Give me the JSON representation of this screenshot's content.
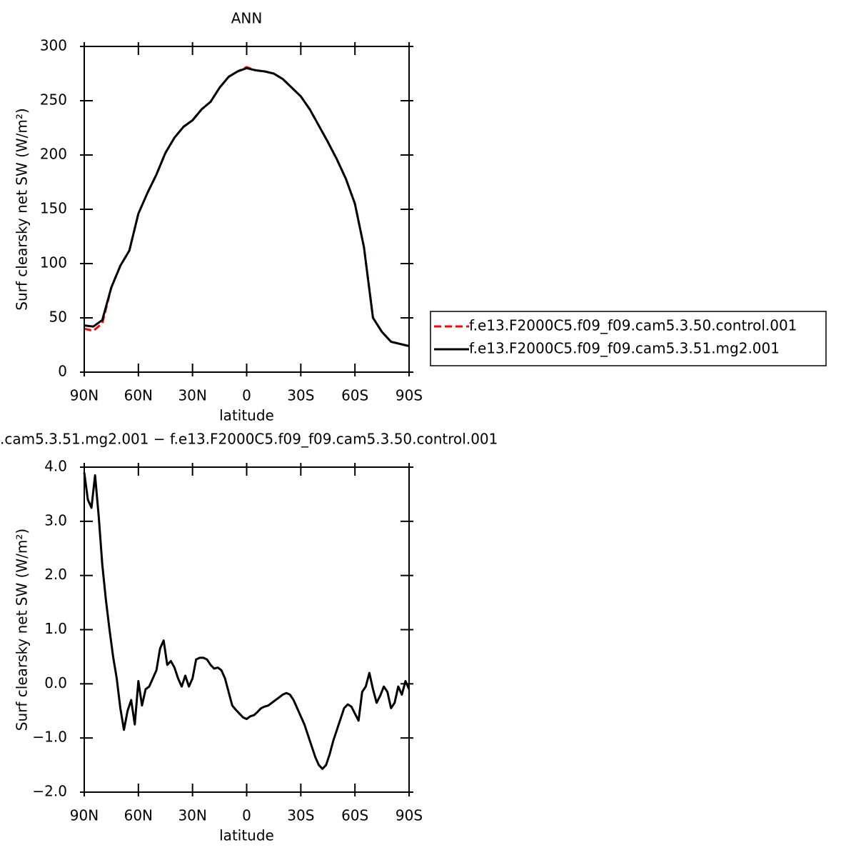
{
  "chart_data": [
    {
      "type": "line",
      "title": "ANN",
      "xlabel": "latitude",
      "ylabel": "Surf clearsky net SW (W/m²)",
      "x": [
        90,
        85,
        80,
        75,
        70,
        65,
        60,
        55,
        50,
        45,
        40,
        35,
        30,
        25,
        20,
        15,
        10,
        5,
        0,
        -5,
        -10,
        -15,
        -20,
        -25,
        -30,
        -35,
        -40,
        -45,
        -50,
        -55,
        -60,
        -65,
        -70,
        -75,
        -80,
        -85,
        -90
      ],
      "series": [
        {
          "name": "f.e13.F2000C5.f09_f09.cam5.3.50.control.001",
          "color": "#ff0000",
          "dash": true,
          "values": [
            40,
            38,
            45,
            78,
            98,
            112,
            146,
            165,
            182,
            202,
            216,
            226,
            232,
            242,
            249,
            262,
            272,
            277,
            281,
            278,
            277,
            275,
            270,
            262,
            254,
            242,
            227,
            212,
            196,
            178,
            155,
            115,
            50,
            37,
            28,
            26,
            24
          ]
        },
        {
          "name": "f.e13.F2000C5.f09_f09.cam5.3.51.mg2.001",
          "color": "#000000",
          "dash": false,
          "values": [
            43,
            42,
            48,
            78,
            98,
            112,
            146,
            165,
            182,
            202,
            216,
            226,
            232,
            242,
            249,
            262,
            272,
            277,
            280,
            278,
            277,
            275,
            270,
            262,
            254,
            242,
            227,
            212,
            196,
            178,
            155,
            115,
            50,
            37,
            28,
            26,
            24
          ]
        }
      ],
      "xlim": [
        90,
        -90
      ],
      "xticks": [
        {
          "value": 90,
          "label": "90N"
        },
        {
          "value": 60,
          "label": "60N"
        },
        {
          "value": 30,
          "label": "30N"
        },
        0,
        {
          "value": -30,
          "label": "30S"
        },
        {
          "value": -60,
          "label": "60S"
        },
        {
          "value": -90,
          "label": "90S"
        }
      ],
      "ylim": [
        0,
        300
      ],
      "yticks": [
        0,
        50,
        100,
        150,
        200,
        250,
        300
      ],
      "legend": "right"
    },
    {
      "type": "line",
      "title": ".cam5.3.51.mg2.001 − f.e13.F2000C5.f09_f09.cam5.3.50.control.001",
      "xlabel": "latitude",
      "ylabel": "Surf clearsky net SW (W/m²)",
      "x": [
        90,
        88,
        86,
        84,
        82,
        80,
        78,
        76,
        74,
        72,
        70,
        68,
        66,
        64,
        62,
        60,
        58,
        56,
        54,
        52,
        50,
        48,
        46,
        44,
        42,
        40,
        38,
        36,
        34,
        32,
        30,
        28,
        26,
        24,
        22,
        20,
        18,
        16,
        14,
        12,
        10,
        8,
        6,
        4,
        2,
        0,
        -2,
        -4,
        -6,
        -8,
        -10,
        -12,
        -14,
        -16,
        -18,
        -20,
        -22,
        -24,
        -26,
        -28,
        -30,
        -32,
        -34,
        -36,
        -38,
        -40,
        -42,
        -44,
        -46,
        -48,
        -50,
        -52,
        -54,
        -56,
        -58,
        -60,
        -62,
        -64,
        -66,
        -68,
        -70,
        -72,
        -74,
        -76,
        -78,
        -80,
        -82,
        -84,
        -86,
        -88,
        -90
      ],
      "series": [
        {
          "color": "#000000",
          "dash": false,
          "values": [
            3.9,
            3.4,
            3.25,
            3.85,
            3.1,
            2.2,
            1.55,
            1.0,
            0.5,
            0.1,
            -0.45,
            -0.85,
            -0.5,
            -0.3,
            -0.75,
            0.05,
            -0.4,
            -0.1,
            -0.05,
            0.1,
            0.25,
            0.65,
            0.8,
            0.35,
            0.42,
            0.3,
            0.1,
            -0.05,
            0.15,
            -0.05,
            0.1,
            0.45,
            0.48,
            0.48,
            0.45,
            0.35,
            0.28,
            0.3,
            0.25,
            0.1,
            -0.15,
            -0.4,
            -0.48,
            -0.55,
            -0.62,
            -0.65,
            -0.6,
            -0.58,
            -0.52,
            -0.45,
            -0.42,
            -0.4,
            -0.35,
            -0.3,
            -0.25,
            -0.2,
            -0.17,
            -0.2,
            -0.3,
            -0.45,
            -0.6,
            -0.75,
            -0.95,
            -1.15,
            -1.35,
            -1.5,
            -1.57,
            -1.5,
            -1.3,
            -1.05,
            -0.85,
            -0.65,
            -0.45,
            -0.38,
            -0.42,
            -0.55,
            -0.68,
            -0.15,
            -0.05,
            0.2,
            -0.1,
            -0.35,
            -0.22,
            -0.05,
            -0.15,
            -0.45,
            -0.35,
            -0.05,
            -0.2,
            0.05,
            -0.1
          ]
        }
      ],
      "xlim": [
        90,
        -90
      ],
      "xticks": [
        {
          "value": 90,
          "label": "90N"
        },
        {
          "value": 60,
          "label": "60N"
        },
        {
          "value": 30,
          "label": "30N"
        },
        0,
        {
          "value": -30,
          "label": "30S"
        },
        {
          "value": -60,
          "label": "60S"
        },
        {
          "value": -90,
          "label": "90S"
        }
      ],
      "ylim": [
        -2,
        4
      ],
      "yticks": [
        {
          "value": -2,
          "label": "−2.0"
        },
        {
          "value": -1,
          "label": "−1.0"
        },
        {
          "value": 0,
          "label": "0.0"
        },
        {
          "value": 1,
          "label": "1.0"
        },
        {
          "value": 2,
          "label": "2.0"
        },
        {
          "value": 3,
          "label": "3.0"
        },
        {
          "value": 4,
          "label": "4.0"
        }
      ]
    }
  ]
}
